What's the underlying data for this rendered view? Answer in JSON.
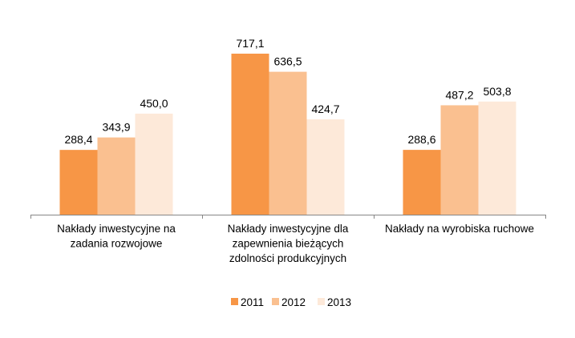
{
  "chart_data": {
    "type": "bar",
    "categories": [
      [
        "Nakłady inwestycyjne na",
        "zadania rozwojowe"
      ],
      [
        "Nakłady inwestycyjne dla",
        "zapewnienia bieżących",
        "zdolności produkcyjnych"
      ],
      [
        "Nakłady na wyrobiska ruchowe"
      ]
    ],
    "series": [
      {
        "name": "2011",
        "color": "#f79646",
        "values": [
          288.4,
          717.1,
          288.6
        ],
        "labels": [
          "288,4",
          "717,1",
          "288,6"
        ]
      },
      {
        "name": "2012",
        "color": "#fac090",
        "values": [
          343.9,
          636.5,
          487.2
        ],
        "labels": [
          "343,9",
          "636,5",
          "487,2"
        ]
      },
      {
        "name": "2013",
        "color": "#fde9d9",
        "values": [
          450.0,
          424.7,
          503.8
        ],
        "labels": [
          "450,0",
          "424,7",
          "503,8"
        ]
      }
    ],
    "ylim": [
      0,
      800
    ],
    "grid": false,
    "legend": "bottom"
  }
}
